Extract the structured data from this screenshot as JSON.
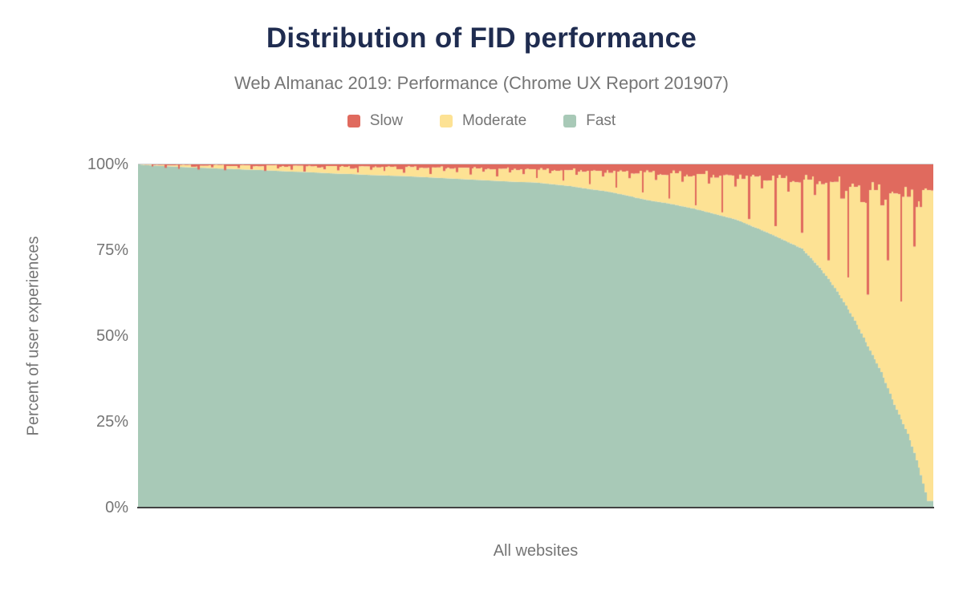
{
  "figure": {
    "title": "Distribution of FID performance",
    "subtitle": "Web Almanac 2019: Performance (Chrome UX Report 201907)",
    "y_axis_label": "Percent of user experiences",
    "x_axis_label": "All websites",
    "y_ticks": [
      "100%",
      "75%",
      "50%",
      "25%",
      "0%"
    ],
    "legend": [
      {
        "label": "Slow",
        "color": "#e06a5e"
      },
      {
        "label": "Moderate",
        "color": "#fde294"
      },
      {
        "label": "Fast",
        "color": "#a8c9b7"
      }
    ],
    "colors": {
      "slow": "#e06a5e",
      "moderate": "#fde294",
      "fast": "#a8c9b7",
      "title_text": "#1f2c50",
      "axis_text": "#757575",
      "axis_line": "#424242"
    }
  },
  "chart_data": {
    "type": "bar",
    "stacked": true,
    "stack_total": 100,
    "title": "Distribution of FID performance",
    "subtitle": "Web Almanac 2019: Performance (Chrome UX Report 201907)",
    "xlabel": "All websites",
    "ylabel": "Percent of user experiences",
    "ylim": [
      0,
      100
    ],
    "y_tick_labels": [
      "0%",
      "25%",
      "50%",
      "75%",
      "100%"
    ],
    "legend_position": "top",
    "grid": false,
    "x_description": "Individual websites sorted descending by percent of fast FID experiences; 120 sampled columns approximating the full distribution",
    "moderate_rule": "Moderate = 100 - Fast - Slow",
    "series": [
      {
        "name": "Fast",
        "color": "#a8c9b7",
        "values": [
          100,
          99.8,
          99.7,
          99.6,
          99.5,
          99.4,
          99.3,
          99.2,
          99.1,
          99.05,
          99,
          98.9,
          98.8,
          98.75,
          98.7,
          98.6,
          98.5,
          98.45,
          98.4,
          98.3,
          98.2,
          98.1,
          98,
          97.9,
          97.85,
          97.8,
          97.7,
          97.6,
          97.5,
          97.4,
          97.3,
          97.25,
          97.2,
          97.1,
          97,
          96.9,
          96.85,
          96.8,
          96.7,
          96.65,
          96.6,
          96.5,
          96.4,
          96.3,
          96.2,
          96.1,
          96,
          95.9,
          95.8,
          95.7,
          95.6,
          95.5,
          95.4,
          95.3,
          95.2,
          95.1,
          95,
          94.9,
          94.85,
          94.8,
          94.7,
          94.5,
          94.3,
          94.1,
          93.9,
          93.7,
          93.4,
          93.1,
          92.8,
          92.55,
          92.3,
          92,
          91.6,
          91.2,
          90.8,
          90.3,
          89.9,
          89.5,
          89.2,
          88.9,
          88.6,
          88.2,
          87.8,
          87.4,
          87,
          86.5,
          86,
          85.5,
          85,
          84.5,
          84,
          83.2,
          82.4,
          81.6,
          80.8,
          80,
          79.1,
          78.2,
          77.3,
          76.4,
          75.5,
          73.5,
          71.4,
          69.2,
          66.7,
          64,
          61,
          57.8,
          54.5,
          50.8,
          47,
          43.3,
          39.5,
          34.8,
          30,
          25.8,
          21.5,
          16,
          9.5,
          2
        ]
      },
      {
        "name": "Slow",
        "color": "#e06a5e",
        "values": [
          0,
          0.1,
          0.6,
          0.2,
          1,
          0.3,
          1.3,
          0.2,
          0.7,
          1.5,
          0.4,
          0.9,
          0.2,
          1.7,
          0.5,
          1.1,
          0.3,
          1.4,
          0.6,
          1.9,
          0.3,
          1.2,
          0.7,
          1.6,
          0.4,
          2.1,
          0.6,
          1,
          1.5,
          0.5,
          1.8,
          0.7,
          1.3,
          2.4,
          0.6,
          1.6,
          0.9,
          2,
          0.7,
          1.4,
          2.5,
          0.8,
          1.7,
          1.1,
          2.8,
          0.9,
          2,
          1.3,
          2.3,
          1,
          3,
          1.2,
          2.2,
          1.5,
          3.5,
          1.3,
          2.4,
          1.7,
          2.9,
          1.4,
          4,
          1.6,
          2.6,
          1.9,
          4.8,
          1.7,
          3.1,
          2.2,
          5.8,
          1.9,
          3.6,
          2.5,
          6.8,
          2.1,
          4.1,
          2.7,
          8.2,
          2.3,
          4.6,
          3.1,
          10,
          2.6,
          5.1,
          3.5,
          12,
          2.8,
          5.6,
          3.9,
          14,
          3.2,
          6.5,
          4.3,
          16,
          3.6,
          7,
          4.7,
          18,
          4,
          8,
          5.2,
          20,
          4.5,
          9,
          5.8,
          28,
          5.1,
          10,
          33,
          6.6,
          11,
          38,
          7.5,
          12,
          28,
          8.5,
          40,
          9.5,
          24,
          12.5,
          7.5
        ]
      }
    ]
  }
}
